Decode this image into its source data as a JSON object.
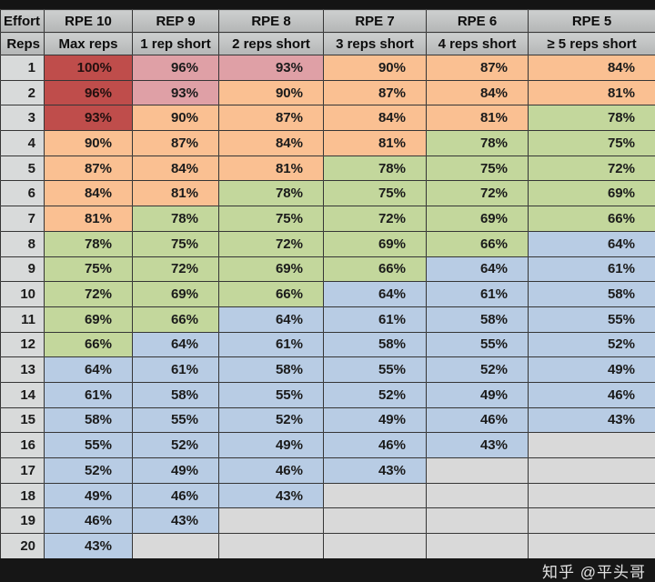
{
  "chart_data": {
    "type": "table",
    "header_row1": [
      "Effort",
      "RPE 10",
      "REP 9",
      "RPE 8",
      "RPE 7",
      "RPE 6",
      "RPE 5"
    ],
    "header_row2": [
      "Reps",
      "Max reps",
      "1 rep short",
      "2 reps short",
      "3 reps short",
      "4 reps short",
      "≥ 5 reps short"
    ],
    "rows": [
      {
        "reps": "1",
        "values": [
          "100%",
          "96%",
          "93%",
          "90%",
          "87%",
          "84%"
        ]
      },
      {
        "reps": "2",
        "values": [
          "96%",
          "93%",
          "90%",
          "87%",
          "84%",
          "81%"
        ]
      },
      {
        "reps": "3",
        "values": [
          "93%",
          "90%",
          "87%",
          "84%",
          "81%",
          "78%"
        ]
      },
      {
        "reps": "4",
        "values": [
          "90%",
          "87%",
          "84%",
          "81%",
          "78%",
          "75%"
        ]
      },
      {
        "reps": "5",
        "values": [
          "87%",
          "84%",
          "81%",
          "78%",
          "75%",
          "72%"
        ]
      },
      {
        "reps": "6",
        "values": [
          "84%",
          "81%",
          "78%",
          "75%",
          "72%",
          "69%"
        ]
      },
      {
        "reps": "7",
        "values": [
          "81%",
          "78%",
          "75%",
          "72%",
          "69%",
          "66%"
        ]
      },
      {
        "reps": "8",
        "values": [
          "78%",
          "75%",
          "72%",
          "69%",
          "66%",
          "64%"
        ]
      },
      {
        "reps": "9",
        "values": [
          "75%",
          "72%",
          "69%",
          "66%",
          "64%",
          "61%"
        ]
      },
      {
        "reps": "10",
        "values": [
          "72%",
          "69%",
          "66%",
          "64%",
          "61%",
          "58%"
        ]
      },
      {
        "reps": "11",
        "values": [
          "69%",
          "66%",
          "64%",
          "61%",
          "58%",
          "55%"
        ]
      },
      {
        "reps": "12",
        "values": [
          "66%",
          "64%",
          "61%",
          "58%",
          "55%",
          "52%"
        ]
      },
      {
        "reps": "13",
        "values": [
          "64%",
          "61%",
          "58%",
          "55%",
          "52%",
          "49%"
        ]
      },
      {
        "reps": "14",
        "values": [
          "61%",
          "58%",
          "55%",
          "52%",
          "49%",
          "46%"
        ]
      },
      {
        "reps": "15",
        "values": [
          "58%",
          "55%",
          "52%",
          "49%",
          "46%",
          "43%"
        ]
      },
      {
        "reps": "16",
        "values": [
          "55%",
          "52%",
          "49%",
          "46%",
          "43%",
          ""
        ]
      },
      {
        "reps": "17",
        "values": [
          "52%",
          "49%",
          "46%",
          "43%",
          "",
          ""
        ]
      },
      {
        "reps": "18",
        "values": [
          "49%",
          "46%",
          "43%",
          "",
          "",
          ""
        ]
      },
      {
        "reps": "19",
        "values": [
          "46%",
          "43%",
          "",
          "",
          "",
          ""
        ]
      },
      {
        "reps": "20",
        "values": [
          "43%",
          "",
          "",
          "",
          "",
          ""
        ]
      }
    ]
  },
  "colors": {
    "red": "#bf4d4b",
    "pink": "#dfa0a6",
    "orange": "#fac092",
    "green": "#c3d79c",
    "blue": "#b8cce4",
    "empty_cell": "#d9d9d9",
    "row_header_bg": "#d8dada"
  },
  "color_rules": {
    "red_min": 93,
    "orange_min": 80,
    "green_min": 66
  },
  "watermark": "知乎 @平头哥"
}
